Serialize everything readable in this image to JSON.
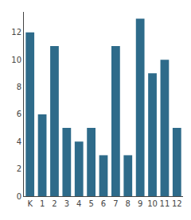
{
  "chart_data": {
    "type": "bar",
    "categories": [
      "K",
      "1",
      "2",
      "3",
      "4",
      "5",
      "6",
      "7",
      "8",
      "9",
      "10",
      "11",
      "12"
    ],
    "values": [
      12,
      6,
      11,
      5,
      4,
      5,
      3,
      11,
      3,
      13,
      9,
      10,
      5
    ],
    "color": "#2e6b8a",
    "ylim": [
      0,
      13.5
    ],
    "yticks": [
      0,
      2,
      4,
      6,
      8,
      10,
      12
    ],
    "grid": false
  }
}
